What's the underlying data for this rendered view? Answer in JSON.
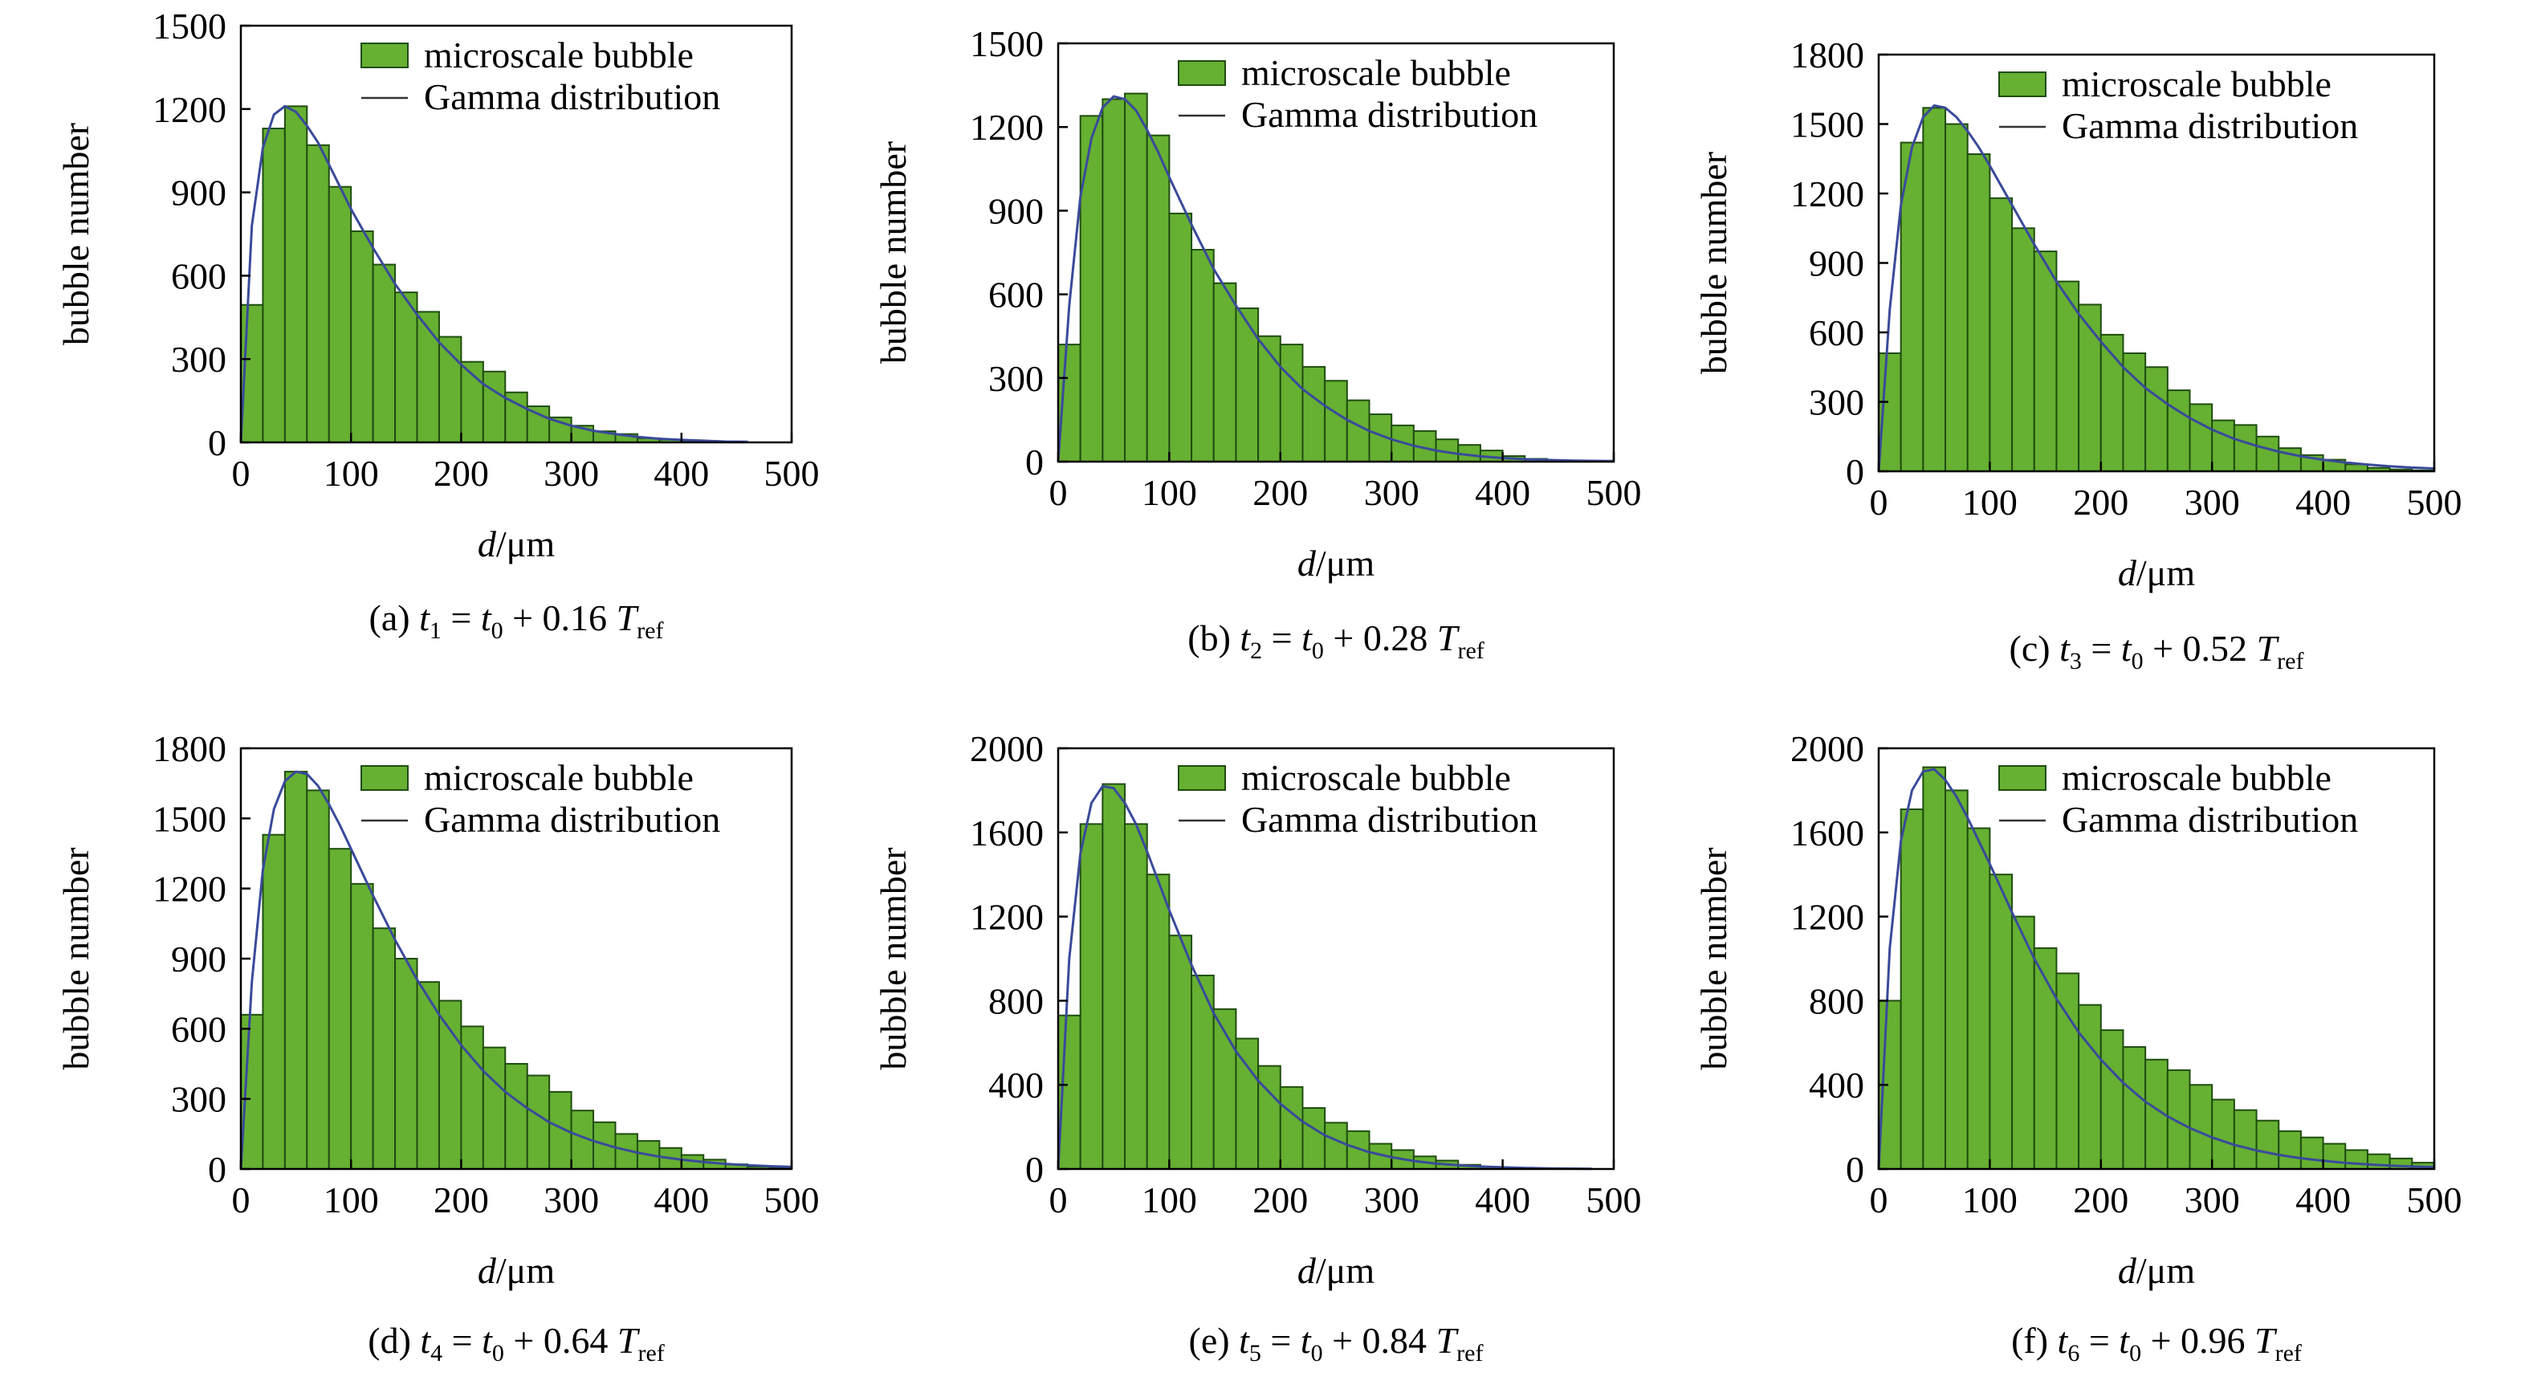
{
  "figure": {
    "bar_color": "#66b032",
    "bar_edge_color": "#1f4d0f",
    "curve_color": "#3a4a9a"
  },
  "chart_data": [
    {
      "type": "bar",
      "caption": {
        "prefix": "(a) ",
        "t": "t",
        "tsub": "1",
        "mid": " = ",
        "t0": "t",
        "t0sub": "0",
        "plus": " + 0.16 ",
        "T": "T",
        "Tsub": "ref"
      },
      "xlabel": {
        "var": "d",
        "unit": "/μm"
      },
      "ylabel": "bubble number",
      "xlim": [
        0,
        500
      ],
      "ylim": [
        0,
        1500
      ],
      "xticks": [
        0,
        100,
        200,
        300,
        400,
        500
      ],
      "yticks": [
        0,
        300,
        600,
        900,
        1200,
        1500
      ],
      "legend": {
        "position": "top-right",
        "bar_label": "microscale bubble",
        "line_label": "Gamma distribution"
      },
      "bin_width": 20,
      "bars": {
        "name": "microscale bubble",
        "x": [
          10,
          30,
          50,
          70,
          90,
          110,
          130,
          150,
          170,
          190,
          210,
          230,
          250,
          270,
          290,
          310,
          330,
          350,
          370,
          390,
          410,
          430,
          450
        ],
        "values": [
          495,
          1130,
          1210,
          1070,
          920,
          760,
          640,
          540,
          470,
          380,
          290,
          255,
          180,
          130,
          90,
          60,
          40,
          30,
          15,
          10,
          6,
          4,
          2
        ]
      },
      "curve": {
        "name": "Gamma distribution",
        "x": [
          0,
          10,
          20,
          30,
          40,
          50,
          60,
          70,
          80,
          90,
          100,
          120,
          140,
          160,
          180,
          200,
          220,
          240,
          260,
          280,
          300,
          320,
          340,
          360,
          380,
          400,
          420,
          440,
          460
        ],
        "values": [
          0,
          780,
          1060,
          1180,
          1210,
          1190,
          1140,
          1080,
          1000,
          920,
          840,
          700,
          570,
          460,
          360,
          280,
          210,
          160,
          120,
          85,
          60,
          42,
          30,
          20,
          13,
          9,
          6,
          3,
          2
        ]
      }
    },
    {
      "type": "bar",
      "caption": {
        "prefix": "(b) ",
        "t": "t",
        "tsub": "2",
        "mid": " = ",
        "t0": "t",
        "t0sub": "0",
        "plus": " + 0.28 ",
        "T": "T",
        "Tsub": "ref"
      },
      "xlabel": {
        "var": "d",
        "unit": "/μm"
      },
      "ylabel": "bubble number",
      "xlim": [
        0,
        500
      ],
      "ylim": [
        0,
        1500
      ],
      "xticks": [
        0,
        100,
        200,
        300,
        400,
        500
      ],
      "yticks": [
        0,
        300,
        600,
        900,
        1200,
        1500
      ],
      "legend": {
        "position": "top-right",
        "bar_label": "microscale bubble",
        "line_label": "Gamma distribution"
      },
      "bin_width": 20,
      "bars": {
        "name": "microscale bubble",
        "x": [
          10,
          30,
          50,
          70,
          90,
          110,
          130,
          150,
          170,
          190,
          210,
          230,
          250,
          270,
          290,
          310,
          330,
          350,
          370,
          390,
          410,
          430,
          450,
          470,
          490
        ],
        "values": [
          420,
          1240,
          1300,
          1320,
          1170,
          890,
          760,
          640,
          550,
          450,
          420,
          340,
          290,
          220,
          170,
          130,
          110,
          80,
          60,
          40,
          20,
          10,
          5,
          3,
          1
        ]
      },
      "curve": {
        "name": "Gamma distribution",
        "x": [
          0,
          10,
          20,
          30,
          40,
          50,
          60,
          70,
          80,
          90,
          100,
          120,
          140,
          160,
          180,
          200,
          220,
          240,
          260,
          280,
          300,
          320,
          340,
          360,
          380,
          400,
          420,
          440,
          460,
          480,
          500
        ],
        "values": [
          0,
          560,
          950,
          1160,
          1270,
          1310,
          1300,
          1260,
          1190,
          1110,
          1020,
          850,
          690,
          560,
          440,
          340,
          260,
          200,
          150,
          110,
          80,
          57,
          40,
          28,
          19,
          13,
          9,
          6,
          4,
          3,
          2
        ]
      }
    },
    {
      "type": "bar",
      "caption": {
        "prefix": "(c) ",
        "t": "t",
        "tsub": "3",
        "mid": " = ",
        "t0": "t",
        "t0sub": "0",
        "plus": " + 0.52 ",
        "T": "T",
        "Tsub": "ref"
      },
      "xlabel": {
        "var": "d",
        "unit": "/μm"
      },
      "ylabel": "bubble number",
      "xlim": [
        0,
        500
      ],
      "ylim": [
        0,
        1800
      ],
      "xticks": [
        0,
        100,
        200,
        300,
        400,
        500
      ],
      "yticks": [
        0,
        300,
        600,
        900,
        1200,
        1500,
        1800
      ],
      "legend": {
        "position": "top-right",
        "bar_label": "microscale bubble",
        "line_label": "Gamma distribution"
      },
      "bin_width": 20,
      "bars": {
        "name": "microscale bubble",
        "x": [
          10,
          30,
          50,
          70,
          90,
          110,
          130,
          150,
          170,
          190,
          210,
          230,
          250,
          270,
          290,
          310,
          330,
          350,
          370,
          390,
          410,
          430,
          450,
          470,
          490
        ],
        "values": [
          510,
          1420,
          1570,
          1500,
          1370,
          1180,
          1050,
          950,
          820,
          720,
          590,
          510,
          450,
          350,
          290,
          220,
          200,
          150,
          100,
          70,
          50,
          30,
          15,
          8,
          4
        ]
      },
      "curve": {
        "name": "Gamma distribution",
        "x": [
          0,
          10,
          20,
          30,
          40,
          50,
          60,
          70,
          80,
          90,
          100,
          120,
          140,
          160,
          180,
          200,
          220,
          240,
          260,
          280,
          300,
          320,
          340,
          360,
          380,
          400,
          420,
          440,
          460,
          480,
          500
        ],
        "values": [
          0,
          700,
          1150,
          1400,
          1530,
          1580,
          1570,
          1530,
          1470,
          1400,
          1320,
          1150,
          980,
          820,
          680,
          560,
          450,
          360,
          290,
          230,
          180,
          140,
          110,
          85,
          65,
          50,
          38,
          29,
          22,
          16,
          12
        ]
      }
    },
    {
      "type": "bar",
      "caption": {
        "prefix": "(d) ",
        "t": "t",
        "tsub": "4",
        "mid": " = ",
        "t0": "t",
        "t0sub": "0",
        "plus": " + 0.64 ",
        "T": "T",
        "Tsub": "ref"
      },
      "xlabel": {
        "var": "d",
        "unit": "/μm"
      },
      "ylabel": "bubble number",
      "xlim": [
        0,
        500
      ],
      "ylim": [
        0,
        1800
      ],
      "xticks": [
        0,
        100,
        200,
        300,
        400,
        500
      ],
      "yticks": [
        0,
        300,
        600,
        900,
        1200,
        1500,
        1800
      ],
      "legend": {
        "position": "top-right",
        "bar_label": "microscale bubble",
        "line_label": "Gamma distribution"
      },
      "bin_width": 20,
      "bars": {
        "name": "microscale bubble",
        "x": [
          10,
          30,
          50,
          70,
          90,
          110,
          130,
          150,
          170,
          190,
          210,
          230,
          250,
          270,
          290,
          310,
          330,
          350,
          370,
          390,
          410,
          430,
          450,
          470,
          490
        ],
        "values": [
          660,
          1430,
          1700,
          1620,
          1370,
          1220,
          1030,
          900,
          800,
          720,
          610,
          520,
          450,
          400,
          330,
          250,
          200,
          150,
          120,
          90,
          60,
          40,
          20,
          10,
          5
        ]
      },
      "curve": {
        "name": "Gamma distribution",
        "x": [
          0,
          10,
          20,
          30,
          40,
          50,
          60,
          70,
          80,
          90,
          100,
          120,
          140,
          160,
          180,
          200,
          220,
          240,
          260,
          280,
          300,
          320,
          340,
          360,
          380,
          400,
          420,
          440,
          460,
          480,
          500
        ],
        "values": [
          0,
          800,
          1280,
          1540,
          1660,
          1700,
          1690,
          1640,
          1560,
          1470,
          1370,
          1170,
          980,
          810,
          660,
          530,
          420,
          330,
          260,
          200,
          155,
          120,
          92,
          70,
          53,
          40,
          30,
          22,
          16,
          12,
          9
        ]
      }
    },
    {
      "type": "bar",
      "caption": {
        "prefix": "(e) ",
        "t": "t",
        "tsub": "5",
        "mid": " = ",
        "t0": "t",
        "t0sub": "0",
        "plus": " + 0.84 ",
        "T": "T",
        "Tsub": "ref"
      },
      "xlabel": {
        "var": "d",
        "unit": "/μm"
      },
      "ylabel": "bubble number",
      "xlim": [
        0,
        500
      ],
      "ylim": [
        0,
        2000
      ],
      "xticks": [
        0,
        100,
        200,
        300,
        400,
        500
      ],
      "yticks": [
        0,
        400,
        800,
        1200,
        1600,
        2000
      ],
      "legend": {
        "position": "top-right",
        "bar_label": "microscale bubble",
        "line_label": "Gamma distribution"
      },
      "bin_width": 20,
      "bars": {
        "name": "microscale bubble",
        "x": [
          10,
          30,
          50,
          70,
          90,
          110,
          130,
          150,
          170,
          190,
          210,
          230,
          250,
          270,
          290,
          310,
          330,
          350,
          370,
          390,
          410,
          430,
          450,
          470
        ],
        "values": [
          730,
          1640,
          1830,
          1640,
          1400,
          1110,
          920,
          760,
          620,
          490,
          390,
          290,
          220,
          180,
          120,
          90,
          60,
          40,
          20,
          10,
          6,
          4,
          2,
          1
        ]
      },
      "curve": {
        "name": "Gamma distribution",
        "x": [
          0,
          10,
          20,
          30,
          40,
          50,
          60,
          70,
          80,
          90,
          100,
          120,
          140,
          160,
          180,
          200,
          220,
          240,
          260,
          280,
          300,
          320,
          340,
          360,
          380,
          400,
          420,
          440,
          460,
          480
        ],
        "values": [
          0,
          1000,
          1500,
          1740,
          1820,
          1810,
          1740,
          1640,
          1510,
          1370,
          1230,
          970,
          740,
          560,
          420,
          310,
          225,
          160,
          115,
          80,
          56,
          38,
          26,
          18,
          12,
          8,
          5,
          3,
          2,
          1
        ]
      }
    },
    {
      "type": "bar",
      "caption": {
        "prefix": "(f) ",
        "t": "t",
        "tsub": "6",
        "mid": " = ",
        "t0": "t",
        "t0sub": "0",
        "plus": " + 0.96 ",
        "T": "T",
        "Tsub": "ref"
      },
      "xlabel": {
        "var": "d",
        "unit": "/μm"
      },
      "ylabel": "bubble number",
      "xlim": [
        0,
        500
      ],
      "ylim": [
        0,
        2000
      ],
      "xticks": [
        0,
        100,
        200,
        300,
        400,
        500
      ],
      "yticks": [
        0,
        400,
        800,
        1200,
        1600,
        2000
      ],
      "legend": {
        "position": "top-right",
        "bar_label": "microscale bubble",
        "line_label": "Gamma distribution"
      },
      "bin_width": 20,
      "bars": {
        "name": "microscale bubble",
        "x": [
          10,
          30,
          50,
          70,
          90,
          110,
          130,
          150,
          170,
          190,
          210,
          230,
          250,
          270,
          290,
          310,
          330,
          350,
          370,
          390,
          410,
          430,
          450,
          470,
          490
        ],
        "values": [
          800,
          1710,
          1910,
          1800,
          1620,
          1400,
          1200,
          1050,
          930,
          780,
          660,
          580,
          520,
          470,
          400,
          330,
          280,
          230,
          180,
          150,
          120,
          90,
          70,
          50,
          30
        ]
      },
      "curve": {
        "name": "Gamma distribution",
        "x": [
          0,
          10,
          20,
          30,
          40,
          50,
          60,
          70,
          80,
          90,
          100,
          120,
          140,
          160,
          180,
          200,
          220,
          240,
          260,
          280,
          300,
          320,
          340,
          360,
          380,
          400,
          420,
          440,
          460,
          480,
          500
        ],
        "values": [
          0,
          1050,
          1560,
          1800,
          1890,
          1900,
          1850,
          1770,
          1670,
          1560,
          1450,
          1220,
          1000,
          810,
          650,
          520,
          410,
          320,
          250,
          195,
          150,
          115,
          88,
          67,
          51,
          39,
          29,
          22,
          16,
          12,
          9
        ]
      }
    }
  ]
}
